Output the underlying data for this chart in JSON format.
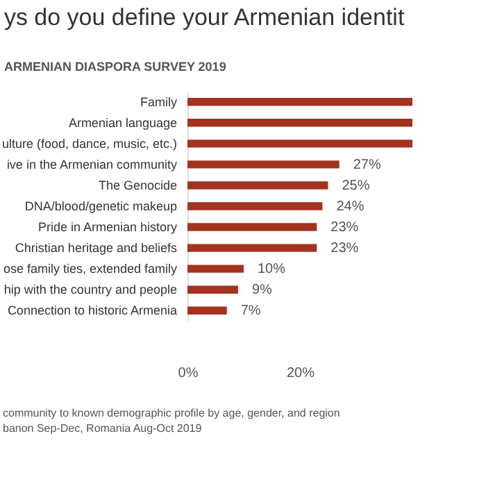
{
  "chart_data": {
    "type": "bar",
    "orientation": "horizontal",
    "title": "ys do you define your Armenian identit",
    "subtitle": "ARMENIAN DIASPORA SURVEY 2019",
    "categories": [
      "Family",
      "Armenian language",
      "ulture (food, dance, music, etc.)",
      "ive in the Armenian community",
      "The Genocide",
      "DNA/blood/genetic makeup",
      "Pride in Armenian history",
      "Christian heritage and beliefs",
      "ose family ties, extended family",
      "hip with the country and people",
      "Connection to historic Armenia"
    ],
    "values": [
      40,
      40,
      40,
      27,
      25,
      24,
      23,
      23,
      10,
      9,
      7
    ],
    "value_labels": [
      null,
      null,
      null,
      "27%",
      "25%",
      "24%",
      "23%",
      "23%",
      "10%",
      "9%",
      "7%"
    ],
    "color": "#a3321f",
    "xlim": [
      0,
      40
    ],
    "xticks": [
      {
        "value": 0,
        "label": "0%"
      },
      {
        "value": 20,
        "label": "20%"
      }
    ],
    "grid": false,
    "annotations": [
      "community to known demographic profile by age, gender, and region",
      "banon Sep-Dec, Romania Aug-Oct 2019"
    ]
  }
}
